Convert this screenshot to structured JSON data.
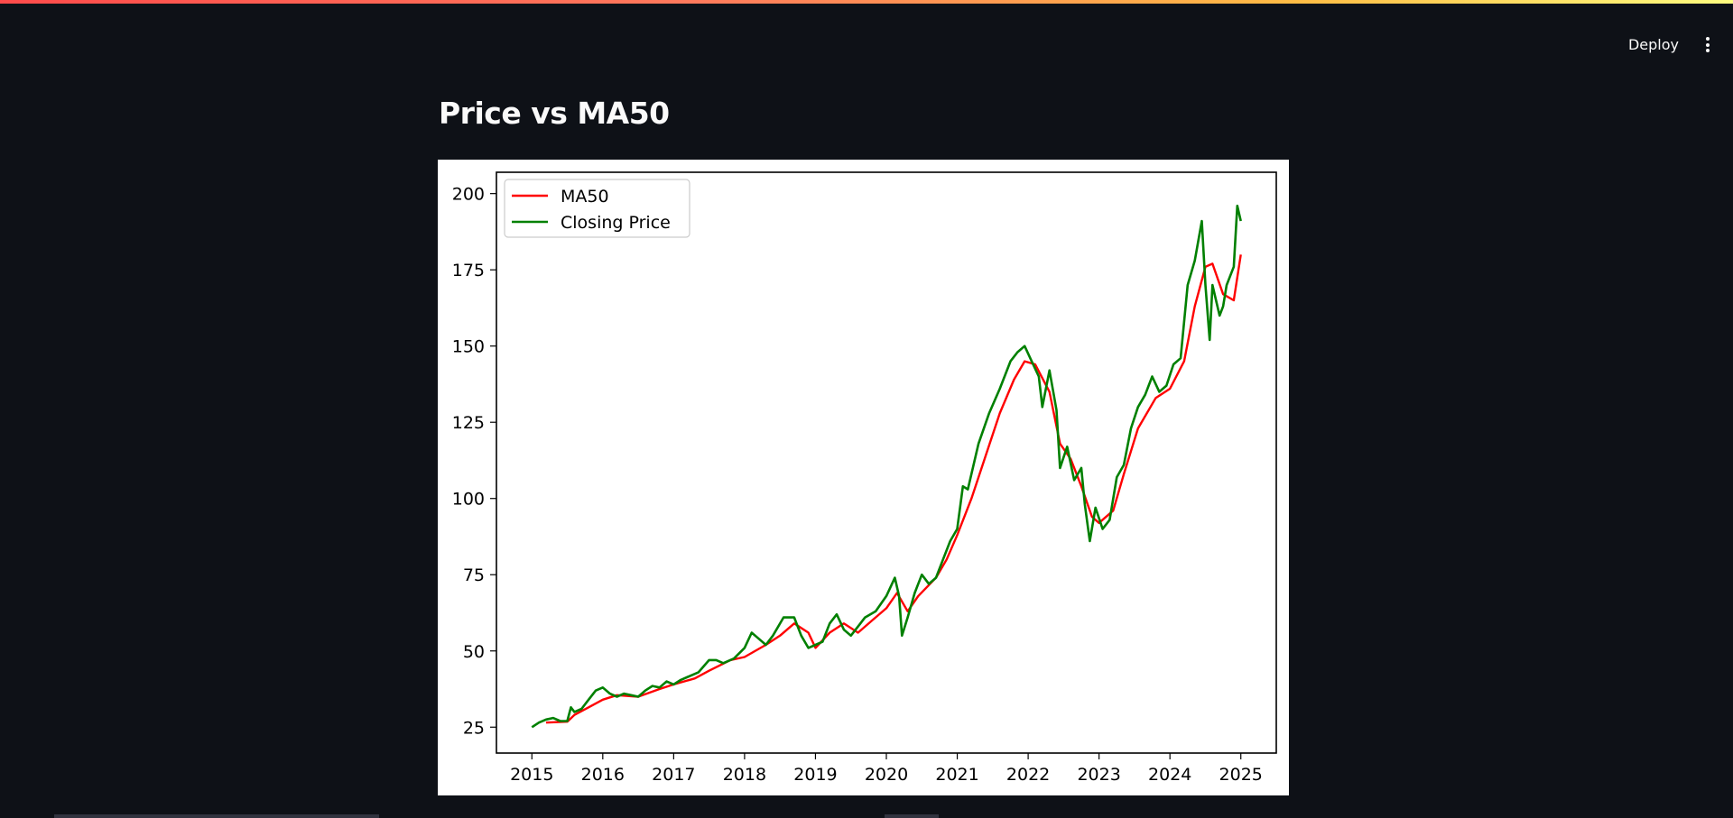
{
  "header": {
    "deploy_label": "Deploy",
    "menu_icon": "kebab-menu-icon"
  },
  "page": {
    "title": "Price vs MA50"
  },
  "colors": {
    "background": "#0e1117",
    "ma50": "#ff0000",
    "closing": "#008000"
  },
  "chart_data": {
    "type": "line",
    "title": "",
    "xlabel": "",
    "ylabel": "",
    "xlim": [
      2014.5,
      2025.5
    ],
    "ylim": [
      16.5,
      207
    ],
    "x_ticks": [
      "2015",
      "2016",
      "2017",
      "2018",
      "2019",
      "2020",
      "2021",
      "2022",
      "2023",
      "2024",
      "2025"
    ],
    "y_ticks": [
      "25",
      "50",
      "75",
      "100",
      "125",
      "150",
      "175",
      "200"
    ],
    "legend_position": "upper-left",
    "grid": false,
    "series": [
      {
        "name": "MA50",
        "color": "#ff0000",
        "x": [
          2015.2,
          2015.5,
          2015.6,
          2015.8,
          2016.0,
          2016.2,
          2016.5,
          2016.8,
          2017.0,
          2017.3,
          2017.5,
          2017.8,
          2018.0,
          2018.3,
          2018.5,
          2018.7,
          2018.9,
          2019.0,
          2019.2,
          2019.4,
          2019.6,
          2019.8,
          2020.0,
          2020.15,
          2020.3,
          2020.45,
          2020.7,
          2020.85,
          2021.0,
          2021.2,
          2021.4,
          2021.6,
          2021.8,
          2021.95,
          2022.1,
          2022.3,
          2022.45,
          2022.6,
          2022.75,
          2022.9,
          2023.0,
          2023.2,
          2023.35,
          2023.55,
          2023.8,
          2024.0,
          2024.2,
          2024.35,
          2024.5,
          2024.6,
          2024.75,
          2024.9,
          2025.0
        ],
        "y": [
          26.5,
          26.8,
          29,
          31.5,
          34,
          35.5,
          35,
          37.5,
          39,
          41,
          43.5,
          47,
          48,
          52,
          55,
          59,
          56,
          51,
          56,
          59,
          56,
          60,
          64,
          69,
          63,
          68,
          74,
          80,
          88,
          100,
          114,
          128,
          139,
          145,
          144,
          135,
          118,
          113,
          104,
          94,
          92,
          96,
          108,
          123,
          133,
          136,
          145,
          163,
          176,
          177,
          167,
          165,
          180
        ]
      },
      {
        "name": "Closing Price",
        "color": "#008000",
        "x": [
          2015.0,
          2015.1,
          2015.2,
          2015.3,
          2015.4,
          2015.5,
          2015.55,
          2015.6,
          2015.7,
          2015.8,
          2015.9,
          2016.0,
          2016.1,
          2016.2,
          2016.3,
          2016.4,
          2016.5,
          2016.6,
          2016.7,
          2016.8,
          2016.9,
          2017.0,
          2017.1,
          2017.2,
          2017.35,
          2017.5,
          2017.6,
          2017.7,
          2017.85,
          2018.0,
          2018.1,
          2018.2,
          2018.3,
          2018.4,
          2018.55,
          2018.7,
          2018.8,
          2018.9,
          2019.0,
          2019.1,
          2019.2,
          2019.3,
          2019.4,
          2019.5,
          2019.6,
          2019.7,
          2019.85,
          2020.0,
          2020.12,
          2020.18,
          2020.22,
          2020.3,
          2020.4,
          2020.5,
          2020.6,
          2020.7,
          2020.8,
          2020.9,
          2021.0,
          2021.08,
          2021.15,
          2021.3,
          2021.45,
          2021.6,
          2021.75,
          2021.85,
          2021.95,
          2022.05,
          2022.15,
          2022.2,
          2022.3,
          2022.4,
          2022.45,
          2022.55,
          2022.65,
          2022.75,
          2022.8,
          2022.87,
          2022.95,
          2023.05,
          2023.15,
          2023.25,
          2023.35,
          2023.45,
          2023.55,
          2023.65,
          2023.75,
          2023.85,
          2023.95,
          2024.05,
          2024.15,
          2024.25,
          2024.35,
          2024.45,
          2024.5,
          2024.56,
          2024.6,
          2024.7,
          2024.75,
          2024.8,
          2024.9,
          2024.95,
          2025.0
        ],
        "y": [
          25,
          26.5,
          27.5,
          28,
          27,
          27,
          31.5,
          30,
          31,
          34,
          37,
          38,
          36,
          35,
          36,
          35.5,
          35,
          37,
          38.5,
          38,
          40,
          39,
          40.5,
          41.5,
          43,
          47,
          47,
          46,
          47.5,
          51,
          56,
          54,
          52,
          55,
          61,
          61,
          55,
          51,
          52,
          53,
          59,
          62,
          57,
          55,
          58,
          61,
          63,
          68,
          74,
          68,
          55,
          61,
          69,
          75,
          72,
          74,
          80,
          86,
          90,
          104,
          103,
          118,
          128,
          136,
          145,
          148,
          150,
          145,
          140,
          130,
          142,
          129,
          110,
          117,
          106,
          110,
          98,
          86,
          97,
          90,
          93,
          107,
          111,
          123,
          130,
          134,
          140,
          135,
          137,
          144,
          146,
          170,
          178,
          191,
          170,
          152,
          170,
          160,
          163,
          170,
          176,
          196,
          191
        ]
      }
    ]
  }
}
